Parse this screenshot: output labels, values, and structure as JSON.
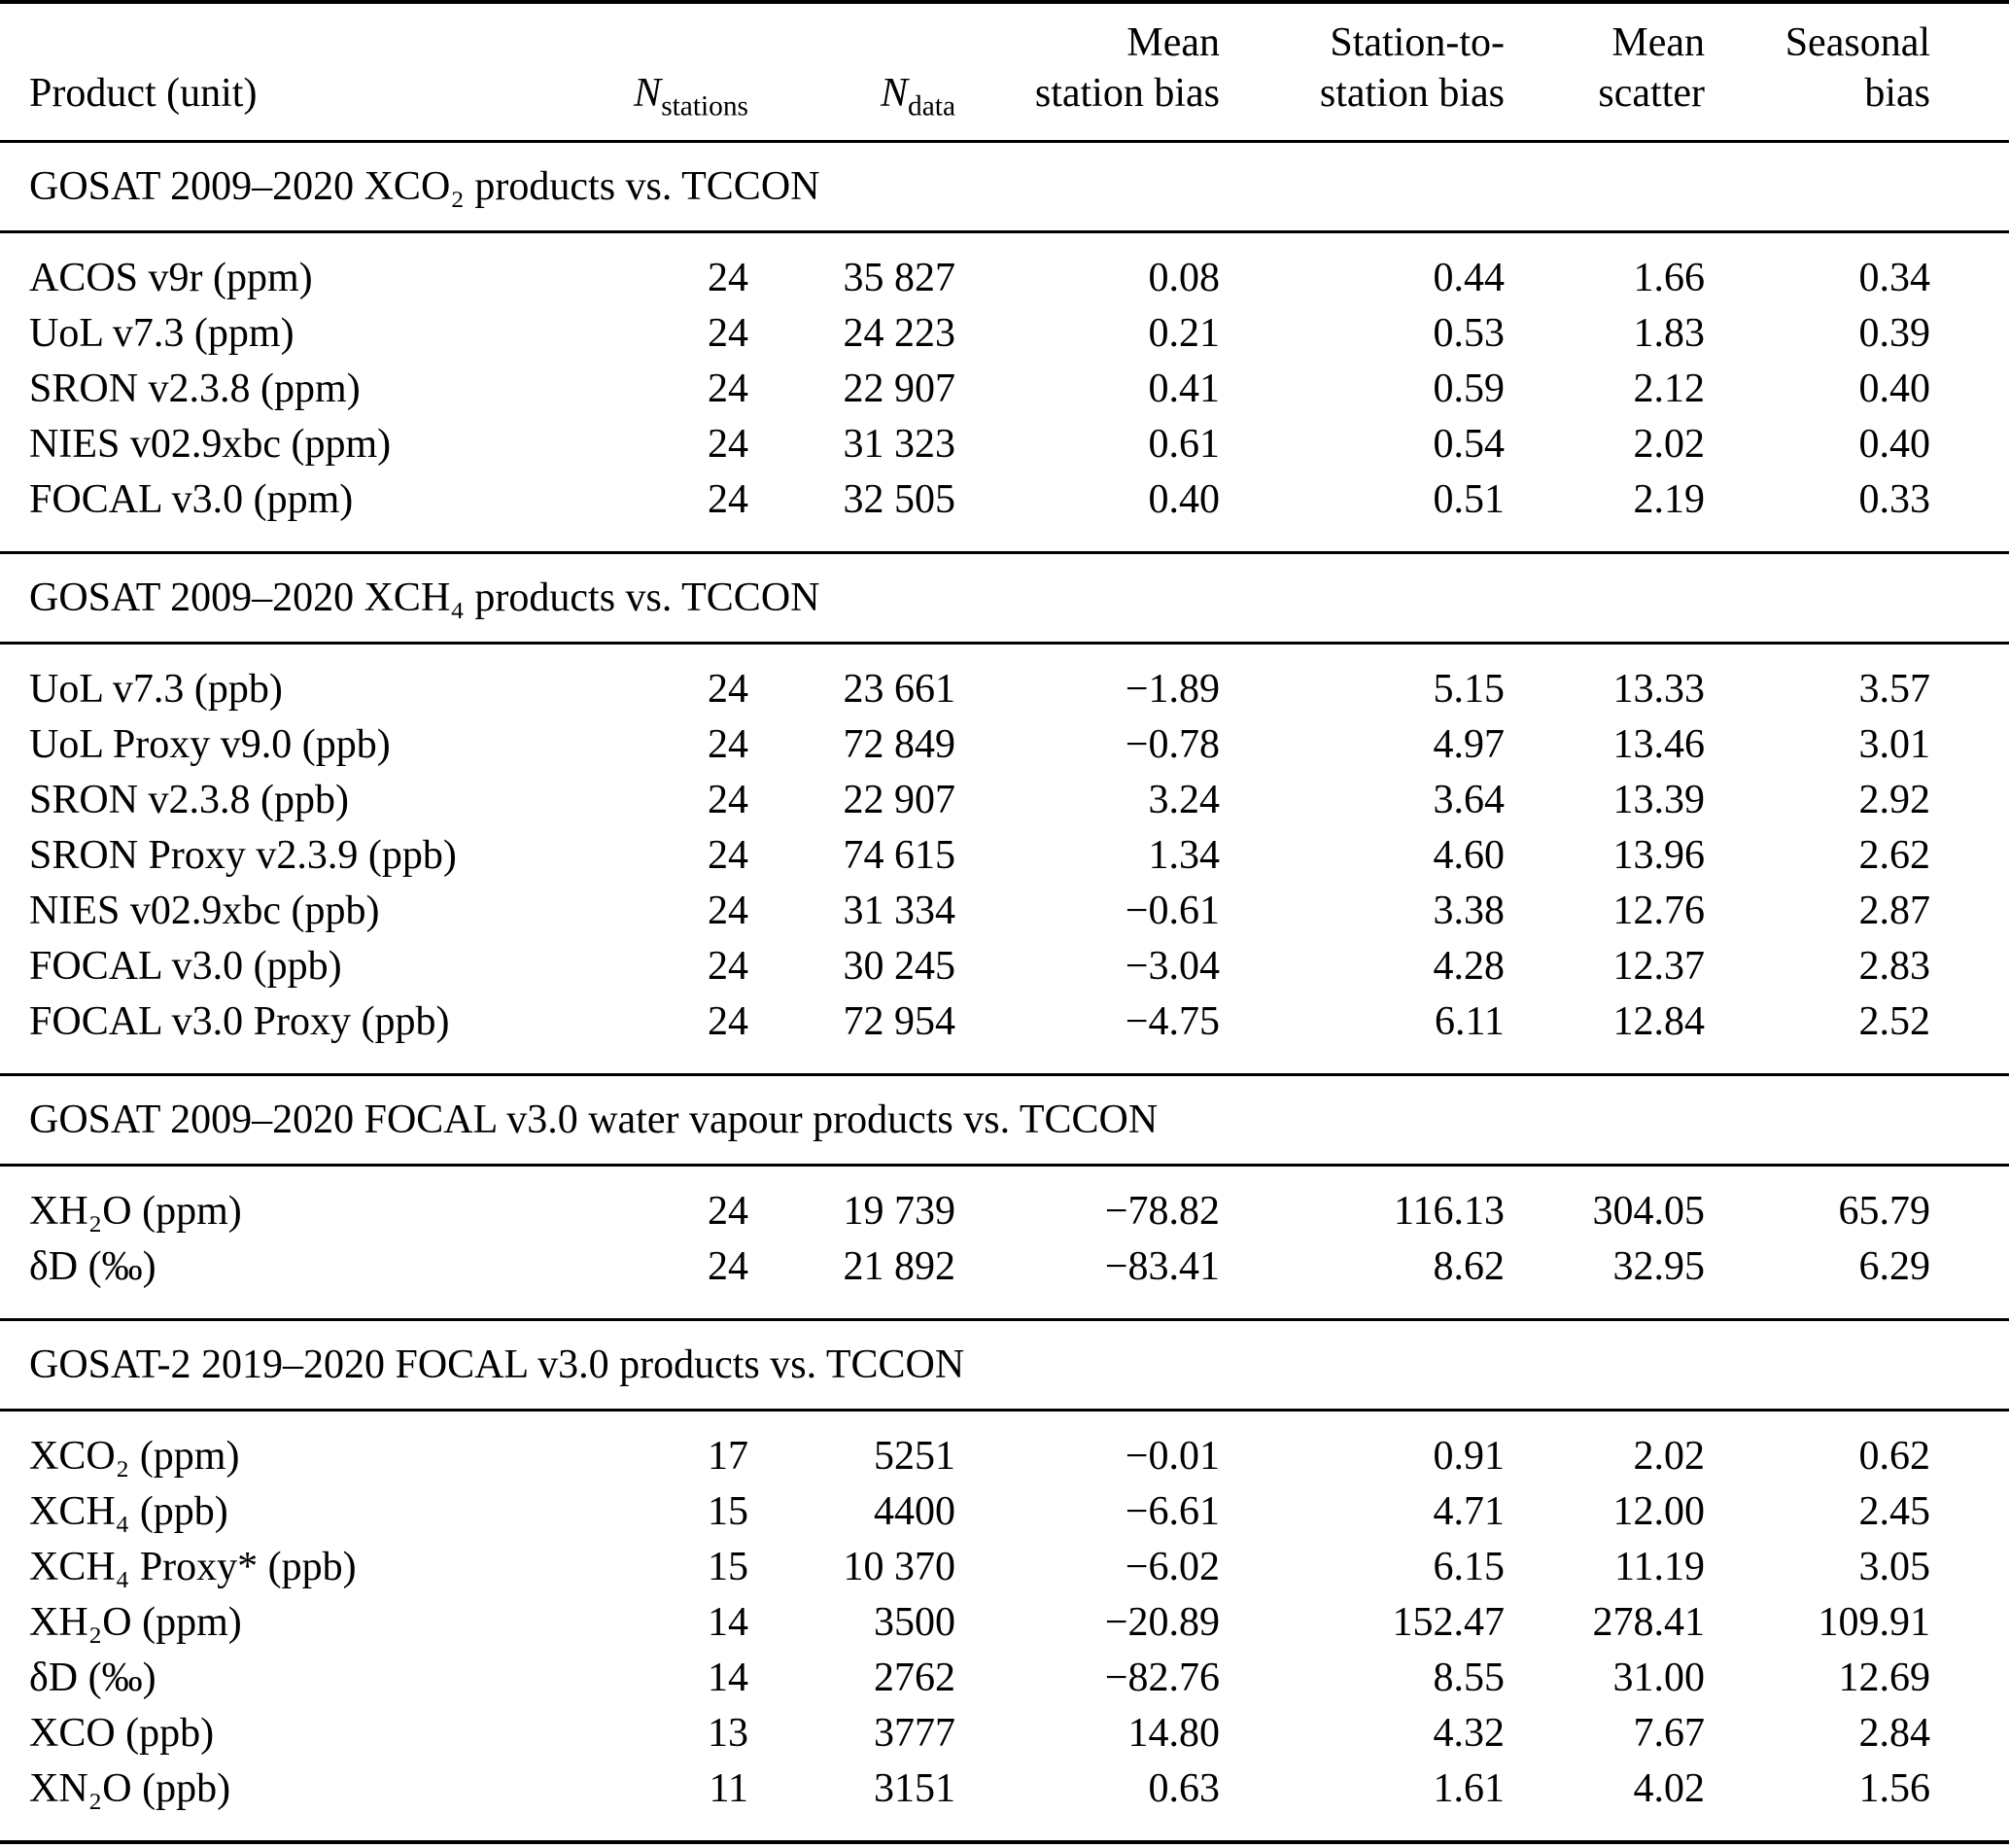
{
  "table": {
    "columns": {
      "product": "Product (unit)",
      "n_stations": {
        "base": "N",
        "sub": "stations"
      },
      "n_data": {
        "base": "N",
        "sub": "data"
      },
      "mean_station_bias": {
        "line1": "Mean",
        "line2": "station bias"
      },
      "station_to_station_bias": {
        "line1": "Station-to-",
        "line2": "station bias"
      },
      "mean_scatter": {
        "line1": "Mean",
        "line2": "scatter"
      },
      "seasonal_bias": {
        "line1": "Seasonal",
        "line2": "bias"
      }
    },
    "sections": [
      {
        "header": "GOSAT 2009–2020 XCO₂ products vs. TCCON",
        "rows": [
          [
            "ACOS v9r (ppm)",
            "24",
            "35 827",
            "0.08",
            "0.44",
            "1.66",
            "0.34"
          ],
          [
            "UoL v7.3 (ppm)",
            "24",
            "24 223",
            "0.21",
            "0.53",
            "1.83",
            "0.39"
          ],
          [
            "SRON v2.3.8 (ppm)",
            "24",
            "22 907",
            "0.41",
            "0.59",
            "2.12",
            "0.40"
          ],
          [
            "NIES v02.9xbc (ppm)",
            "24",
            "31 323",
            "0.61",
            "0.54",
            "2.02",
            "0.40"
          ],
          [
            "FOCAL v3.0 (ppm)",
            "24",
            "32 505",
            "0.40",
            "0.51",
            "2.19",
            "0.33"
          ]
        ]
      },
      {
        "header": "GOSAT 2009–2020 XCH₄ products vs. TCCON",
        "rows": [
          [
            "UoL v7.3 (ppb)",
            "24",
            "23 661",
            "−1.89",
            "5.15",
            "13.33",
            "3.57"
          ],
          [
            "UoL Proxy v9.0 (ppb)",
            "24",
            "72 849",
            "−0.78",
            "4.97",
            "13.46",
            "3.01"
          ],
          [
            "SRON v2.3.8 (ppb)",
            "24",
            "22 907",
            "3.24",
            "3.64",
            "13.39",
            "2.92"
          ],
          [
            "SRON Proxy v2.3.9 (ppb)",
            "24",
            "74 615",
            "1.34",
            "4.60",
            "13.96",
            "2.62"
          ],
          [
            "NIES v02.9xbc (ppb)",
            "24",
            "31 334",
            "−0.61",
            "3.38",
            "12.76",
            "2.87"
          ],
          [
            "FOCAL v3.0 (ppb)",
            "24",
            "30 245",
            "−3.04",
            "4.28",
            "12.37",
            "2.83"
          ],
          [
            "FOCAL v3.0 Proxy (ppb)",
            "24",
            "72 954",
            "−4.75",
            "6.11",
            "12.84",
            "2.52"
          ]
        ]
      },
      {
        "header": "GOSAT 2009–2020 FOCAL v3.0 water vapour products vs. TCCON",
        "rows": [
          [
            "XH₂O (ppm)",
            "24",
            "19 739",
            "−78.82",
            "116.13",
            "304.05",
            "65.79"
          ],
          [
            "δD (‰)",
            "24",
            "21 892",
            "−83.41",
            "8.62",
            "32.95",
            "6.29"
          ]
        ]
      },
      {
        "header": "GOSAT-2 2019–2020 FOCAL v3.0 products vs. TCCON",
        "rows": [
          [
            "XCO₂ (ppm)",
            "17",
            "5251",
            "−0.01",
            "0.91",
            "2.02",
            "0.62"
          ],
          [
            "XCH₄ (ppb)",
            "15",
            "4400",
            "−6.61",
            "4.71",
            "12.00",
            "2.45"
          ],
          [
            "XCH₄ Proxy* (ppb)",
            "15",
            "10 370",
            "−6.02",
            "6.15",
            "11.19",
            "3.05"
          ],
          [
            "XH₂O (ppm)",
            "14",
            "3500",
            "−20.89",
            "152.47",
            "278.41",
            "109.91"
          ],
          [
            "δD (‰)",
            "14",
            "2762",
            "−82.76",
            "8.55",
            "31.00",
            "12.69"
          ],
          [
            "XCO (ppb)",
            "13",
            "3777",
            "14.80",
            "4.32",
            "7.67",
            "2.84"
          ],
          [
            "XN₂O (ppb)",
            "11",
            "3151",
            "0.63",
            "1.61",
            "4.02",
            "1.56"
          ]
        ]
      }
    ]
  },
  "colors": {
    "text": "#000000",
    "background": "#ffffff",
    "rule": "#000000"
  }
}
